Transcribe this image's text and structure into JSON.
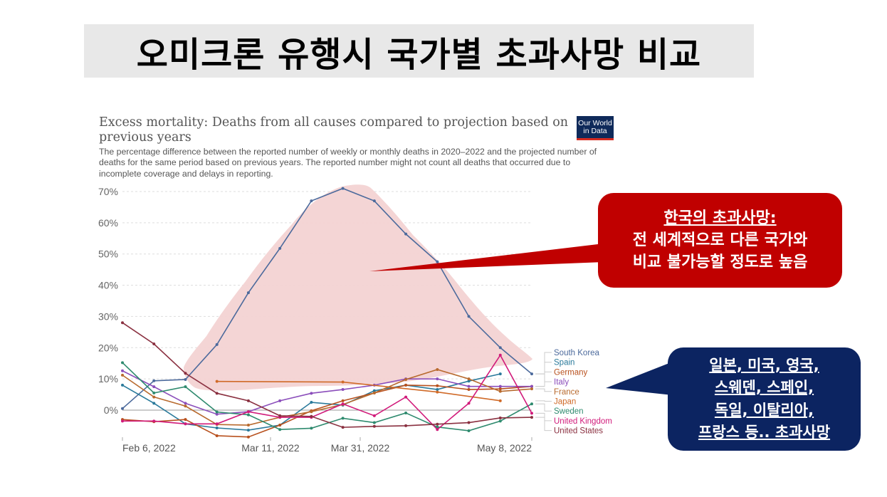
{
  "slide": {
    "title": "오미크론 유행시 국가별 초과사망 비교"
  },
  "chart_header": {
    "title": "Excess mortality: Deaths from all causes compared to projection based on previous years",
    "title_line1": "Excess mortality: Deaths from all causes compared to projection based on",
    "title_line2": "previous years",
    "subtitle": "The percentage difference between the reported number of weekly or monthly deaths in 2020–2022 and the projected number of deaths for the same period based on previous years. The reported number might not count all deaths that occurred due to incomplete coverage and delays in reporting.",
    "logo_line1": "Our World",
    "logo_line2": "in Data"
  },
  "callouts": {
    "korea": {
      "heading": "한국의 초과사망:",
      "line1": "전 세계적으로 다른 국가와",
      "line2": "비교 불가능할 정도로 높음",
      "color": "#c00000"
    },
    "others": {
      "line1": "일본, 미국, 영국,",
      "line2": "스웨덴, 스페인,",
      "line3": "독일, 이탈리아,",
      "line4": "프랑스 등.. 초과사망",
      "color": "#0c2461"
    }
  },
  "chart_data": {
    "type": "line",
    "title": "Excess mortality: Deaths from all causes compared to projection based on previous years",
    "xlabel": "",
    "ylabel": "",
    "ylim": [
      -8,
      72
    ],
    "yticks": [
      "0%",
      "10%",
      "20%",
      "30%",
      "40%",
      "50%",
      "60%",
      "70%"
    ],
    "xtick_labels": [
      "Feb 6, 2022",
      "Mar 11, 2022",
      "Mar 31, 2022",
      "May 8, 2022"
    ],
    "grid": true,
    "legend_position": "right (inline labels)",
    "x_index": [
      0,
      1,
      2,
      3,
      4,
      5,
      6,
      7,
      8,
      9,
      10,
      11,
      12,
      13
    ],
    "series": [
      {
        "name": "South Korea",
        "color": "#4c6a9c",
        "values": [
          0.5,
          9.4,
          9.8,
          21,
          37.6,
          51.8,
          67,
          71,
          67,
          56.4,
          47.5,
          30,
          20,
          11.6
        ]
      },
      {
        "name": "Spain",
        "color": "#2a7a9b",
        "values": [
          8,
          2.2,
          -4.4,
          -5.7,
          -6.4,
          -4.8,
          2.5,
          1.6,
          6.2,
          8,
          6.6,
          9.3,
          11.6,
          null
        ]
      },
      {
        "name": "Germany",
        "color": "#b8511e",
        "values": [
          -3,
          -3.7,
          -3,
          -8.2,
          -8.6,
          -4.8,
          -0.2,
          3,
          5.5,
          8,
          7.8,
          6.6,
          6.8,
          7.6
        ]
      },
      {
        "name": "Italy",
        "color": "#8b4ebb",
        "values": [
          12.6,
          7.5,
          2.2,
          -1.3,
          -0.5,
          3,
          5.4,
          6.6,
          8,
          10,
          10,
          7.6,
          7.6,
          7.6
        ]
      },
      {
        "name": "France",
        "color": "#b86a2e",
        "values": [
          11.2,
          4.2,
          1.3,
          -4.6,
          -4.8,
          -2.3,
          -0.5,
          1.8,
          5.5,
          9.8,
          13,
          10,
          6,
          6.8
        ]
      },
      {
        "name": "Japan",
        "color": "#d06a28",
        "values": [
          null,
          null,
          null,
          9.2,
          null,
          null,
          null,
          9,
          null,
          null,
          5.8,
          null,
          3,
          null
        ]
      },
      {
        "name": "Sweden",
        "color": "#2e8a6e",
        "values": [
          15.2,
          5.5,
          7.5,
          -0.6,
          -1.5,
          -6.2,
          -5.8,
          -2.6,
          -4,
          -0.9,
          -5.4,
          -6.6,
          -3.5,
          2
        ]
      },
      {
        "name": "United Kingdom",
        "color": "#d11a7a",
        "values": [
          -3.5,
          -3.5,
          -4.4,
          -4.4,
          -0.5,
          -2.3,
          -2.3,
          2,
          -1.8,
          4.2,
          -6.2,
          2.2,
          17.6,
          -1
        ]
      },
      {
        "name": "United States",
        "color": "#8a3040",
        "values": [
          28,
          21.2,
          11.8,
          5.4,
          3,
          -1.8,
          -2,
          -5.5,
          -5.2,
          -5,
          -4.5,
          -4,
          -2.5,
          -2.3
        ]
      }
    ]
  }
}
